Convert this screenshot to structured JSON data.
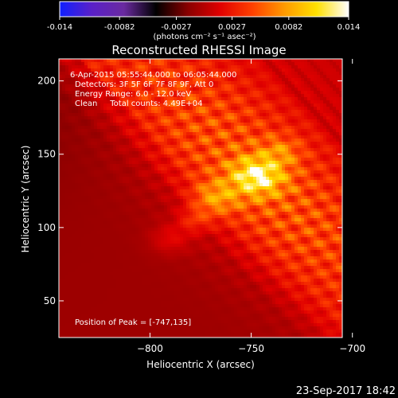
{
  "chart_data": {
    "type": "heatmap",
    "title": "Reconstructed RHESSI Image",
    "colorbar": {
      "min": -0.014,
      "max": 0.014,
      "tick_labels": [
        "-0.014",
        "-0.0082",
        "-0.0027",
        "0.0027",
        "0.0082",
        "0.014"
      ],
      "unit_label": "(photons cm⁻² s⁻¹ asec⁻²)",
      "colors": [
        "#1020ff",
        "#5a20c8",
        "#6a2aa0",
        "#000000",
        "#8a0000",
        "#e00000",
        "#ff4000",
        "#ff9a00",
        "#ffe000",
        "#ffffff"
      ]
    },
    "xlabel": "Heliocentric X (arcsec)",
    "ylabel": "Heliocentric Y (arcsec)",
    "xlim": [
      -845,
      -705
    ],
    "ylim": [
      25,
      215
    ],
    "xticks": [
      -800,
      -750,
      -700
    ],
    "xtick_labels": [
      "−800",
      "−750",
      "−700"
    ],
    "yticks": [
      50,
      100,
      150,
      200
    ],
    "ytick_labels": [
      "50",
      "100",
      "150",
      "200"
    ],
    "annotations": [
      "6-Apr-2015 05:55:44.000 to 06:05:44.000",
      "Detectors: 3F 5F 6F 7F 8F 9F, Att 0",
      "Energy Range: 6.0 - 12.0 keV",
      "Clean     Total counts: 4.49E+04"
    ],
    "peak_label": "Position of Peak = [-747,135]",
    "peak": {
      "x": -747,
      "y": 135,
      "value": 0.014
    }
  },
  "timestamp": "23-Sep-2017 18:42"
}
